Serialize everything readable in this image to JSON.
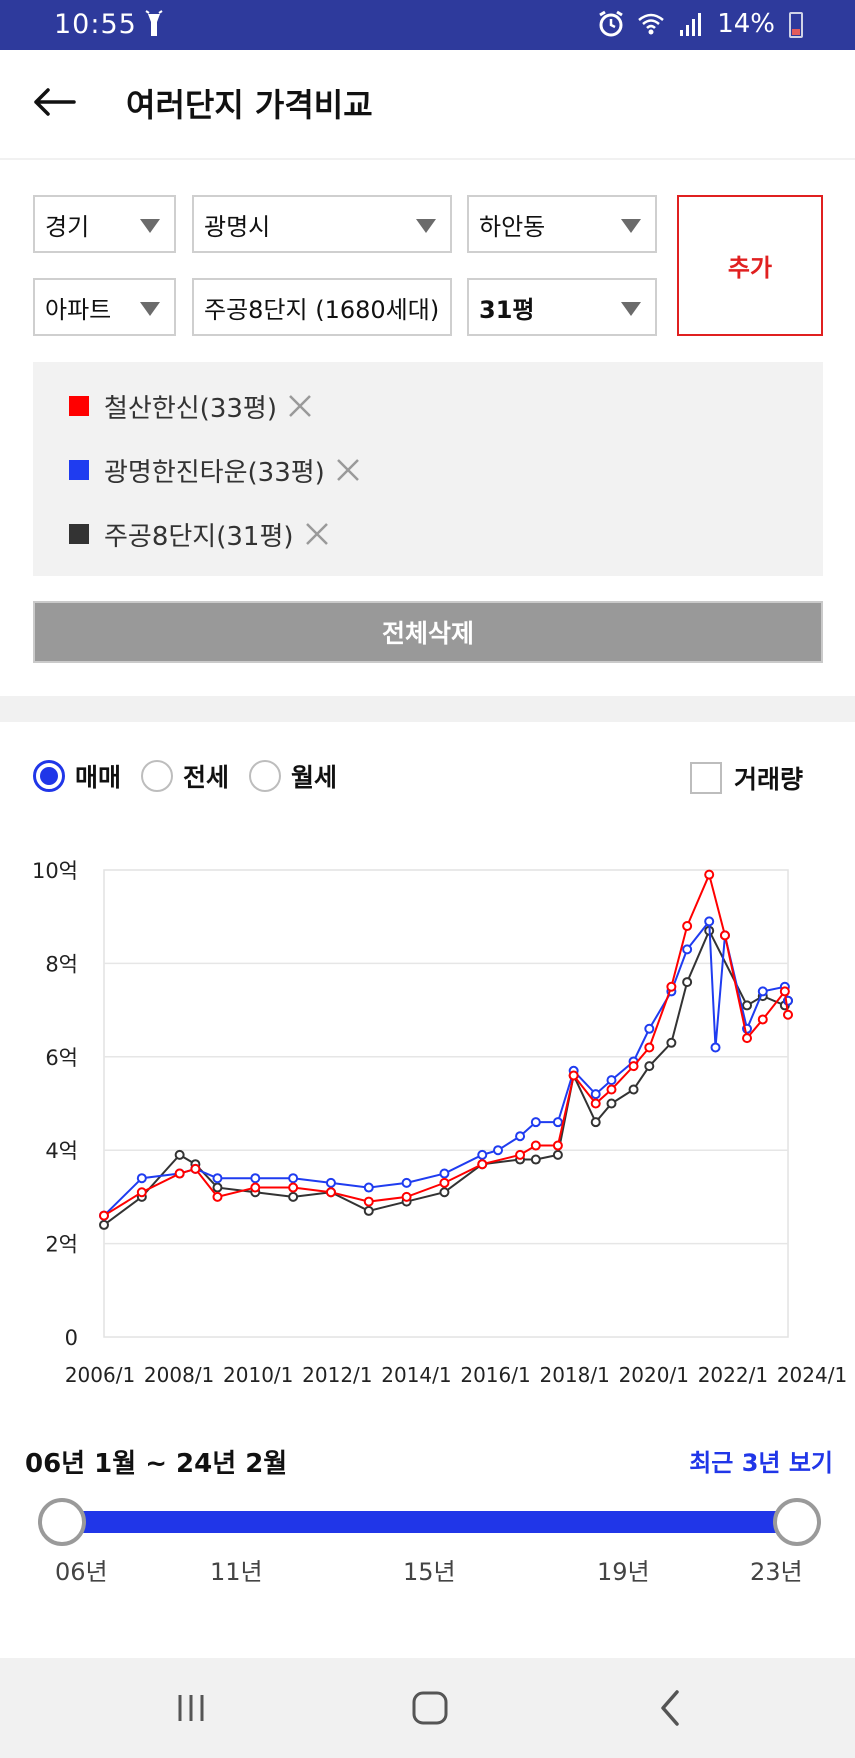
{
  "status": {
    "time": "10:55",
    "battery": "14%"
  },
  "header": {
    "title": "여러단지 가격비교"
  },
  "filters": {
    "province": "경기",
    "city": "광명시",
    "district": "하안동",
    "type": "아파트",
    "complex": "주공8단지 (1680세대)",
    "size": "31평",
    "add_label": "추가"
  },
  "compare": {
    "items": [
      {
        "label": "철산한신(33평)",
        "color": "#ff0000"
      },
      {
        "label": "광명한진타운(33평)",
        "color": "#1f3cf0"
      },
      {
        "label": "주공8단지(31평)",
        "color": "#333333"
      }
    ],
    "delete_all_label": "전체삭제"
  },
  "trade": {
    "options": [
      "매매",
      "전세",
      "월세"
    ],
    "selected": "매매",
    "volume_label": "거래량"
  },
  "chart_data": {
    "type": "line",
    "y_tick_labels": [
      "0",
      "2억",
      "4억",
      "6억",
      "8억",
      "10억"
    ],
    "x_tick_labels": [
      "2006/1",
      "2008/1",
      "2010/1",
      "2012/1",
      "2014/1",
      "2016/1",
      "2018/1",
      "2020/1",
      "2022/1",
      "2024/1"
    ],
    "ylim": [
      0,
      10
    ],
    "xlim": [
      "2006-01",
      "2024-02"
    ],
    "grid": true,
    "series": [
      {
        "name": "철산한신(33평)",
        "color": "#ff0000",
        "x": [
          "2006-01",
          "2007-01",
          "2008-01",
          "2008-06",
          "2009-01",
          "2010-01",
          "2011-01",
          "2012-01",
          "2013-01",
          "2014-01",
          "2015-01",
          "2016-01",
          "2017-01",
          "2017-06",
          "2018-01",
          "2018-06",
          "2019-01",
          "2019-06",
          "2020-01",
          "2020-06",
          "2021-01",
          "2021-06",
          "2022-01",
          "2022-06",
          "2023-01",
          "2023-06",
          "2024-01",
          "2024-02"
        ],
        "values": [
          2.6,
          3.1,
          3.5,
          3.6,
          3.0,
          3.2,
          3.2,
          3.1,
          2.9,
          3.0,
          3.3,
          3.7,
          3.9,
          4.1,
          4.1,
          5.6,
          5.0,
          5.3,
          5.8,
          6.2,
          7.5,
          8.8,
          9.9,
          8.6,
          6.4,
          6.8,
          7.4,
          6.9
        ]
      },
      {
        "name": "광명한진타운(33평)",
        "color": "#1f3cf0",
        "x": [
          "2006-01",
          "2007-01",
          "2008-01",
          "2008-06",
          "2009-01",
          "2010-01",
          "2011-01",
          "2012-01",
          "2013-01",
          "2014-01",
          "2015-01",
          "2016-01",
          "2016-06",
          "2017-01",
          "2017-06",
          "2018-01",
          "2018-06",
          "2019-01",
          "2019-06",
          "2020-01",
          "2020-06",
          "2021-01",
          "2021-06",
          "2022-01",
          "2022-03",
          "2022-06",
          "2023-01",
          "2023-06",
          "2024-01",
          "2024-02"
        ],
        "values": [
          2.6,
          3.4,
          3.5,
          3.6,
          3.4,
          3.4,
          3.4,
          3.3,
          3.2,
          3.3,
          3.5,
          3.9,
          4.0,
          4.3,
          4.6,
          4.6,
          5.7,
          5.2,
          5.5,
          5.9,
          6.6,
          7.4,
          8.3,
          8.9,
          6.2,
          8.6,
          6.6,
          7.4,
          7.5,
          7.2
        ]
      },
      {
        "name": "주공8단지(31평)",
        "color": "#333333",
        "x": [
          "2006-01",
          "2007-01",
          "2008-01",
          "2008-06",
          "2009-01",
          "2010-01",
          "2011-01",
          "2012-01",
          "2013-01",
          "2014-01",
          "2015-01",
          "2016-01",
          "2017-01",
          "2017-06",
          "2018-01",
          "2018-06",
          "2019-01",
          "2019-06",
          "2020-01",
          "2020-06",
          "2021-01",
          "2021-06",
          "2022-01",
          "2023-01",
          "2023-06",
          "2024-01",
          "2024-02"
        ],
        "values": [
          2.4,
          3.0,
          3.9,
          3.7,
          3.2,
          3.1,
          3.0,
          3.1,
          2.7,
          2.9,
          3.1,
          3.7,
          3.8,
          3.8,
          3.9,
          5.6,
          4.6,
          5.0,
          5.3,
          5.8,
          6.3,
          7.6,
          8.7,
          7.1,
          7.3,
          7.1,
          7.2
        ]
      }
    ]
  },
  "range": {
    "label": "06년 1월 ~ 24년 2월",
    "recent_label": "최근 3년 보기",
    "ticks": [
      "06년",
      "11년",
      "15년",
      "19년",
      "23년"
    ],
    "start_fraction": 0,
    "end_fraction": 1
  },
  "nav": {
    "recent_icon": "recent-apps-icon",
    "home_icon": "home-icon",
    "back_icon": "back-icon"
  }
}
